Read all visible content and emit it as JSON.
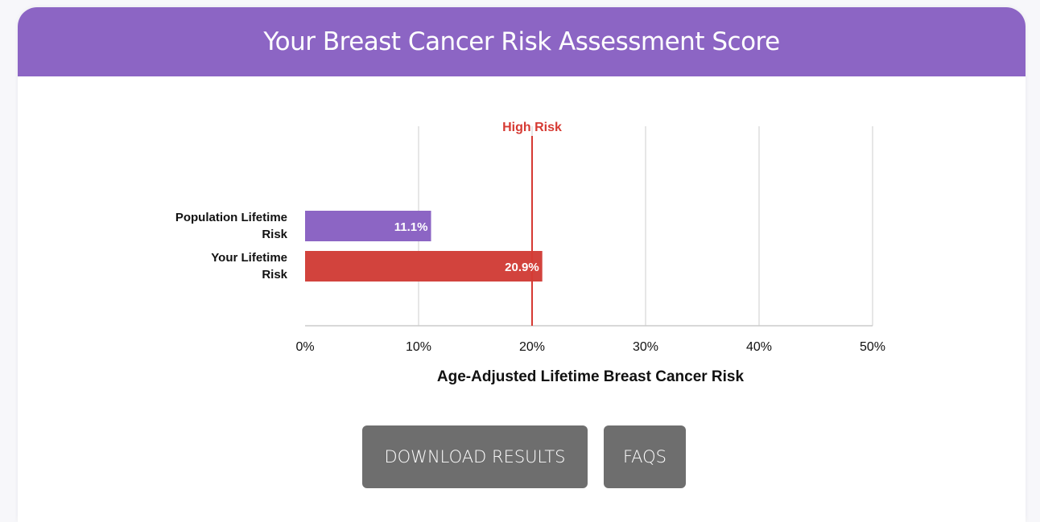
{
  "header": {
    "title": "Your Breast Cancer Risk Assessment Score"
  },
  "colors": {
    "header_bg": "#8c65c4",
    "population_bar": "#8c65c4",
    "your_bar": "#d2433d",
    "high_risk": "#d63a33",
    "button_bg": "#6e6e6e",
    "grid": "#dddddd"
  },
  "chart_data": {
    "type": "bar",
    "orientation": "horizontal",
    "categories": [
      [
        "Population Lifetime",
        "Risk"
      ],
      [
        "Your Lifetime",
        "Risk"
      ]
    ],
    "values": [
      11.1,
      20.9
    ],
    "value_labels": [
      "11.1%",
      "20.9%"
    ],
    "xlabel": "Age-Adjusted Lifetime Breast Cancer Risk",
    "xlim": [
      0,
      50
    ],
    "xticks": [
      0,
      10,
      20,
      30,
      40,
      50
    ],
    "xtick_labels": [
      "0%",
      "10%",
      "20%",
      "30%",
      "40%",
      "50%"
    ],
    "grid": true,
    "reference_line": {
      "value": 20,
      "label": "High Risk"
    }
  },
  "buttons": {
    "download_label": "DOWNLOAD RESULTS",
    "faqs_label": "FAQS"
  }
}
